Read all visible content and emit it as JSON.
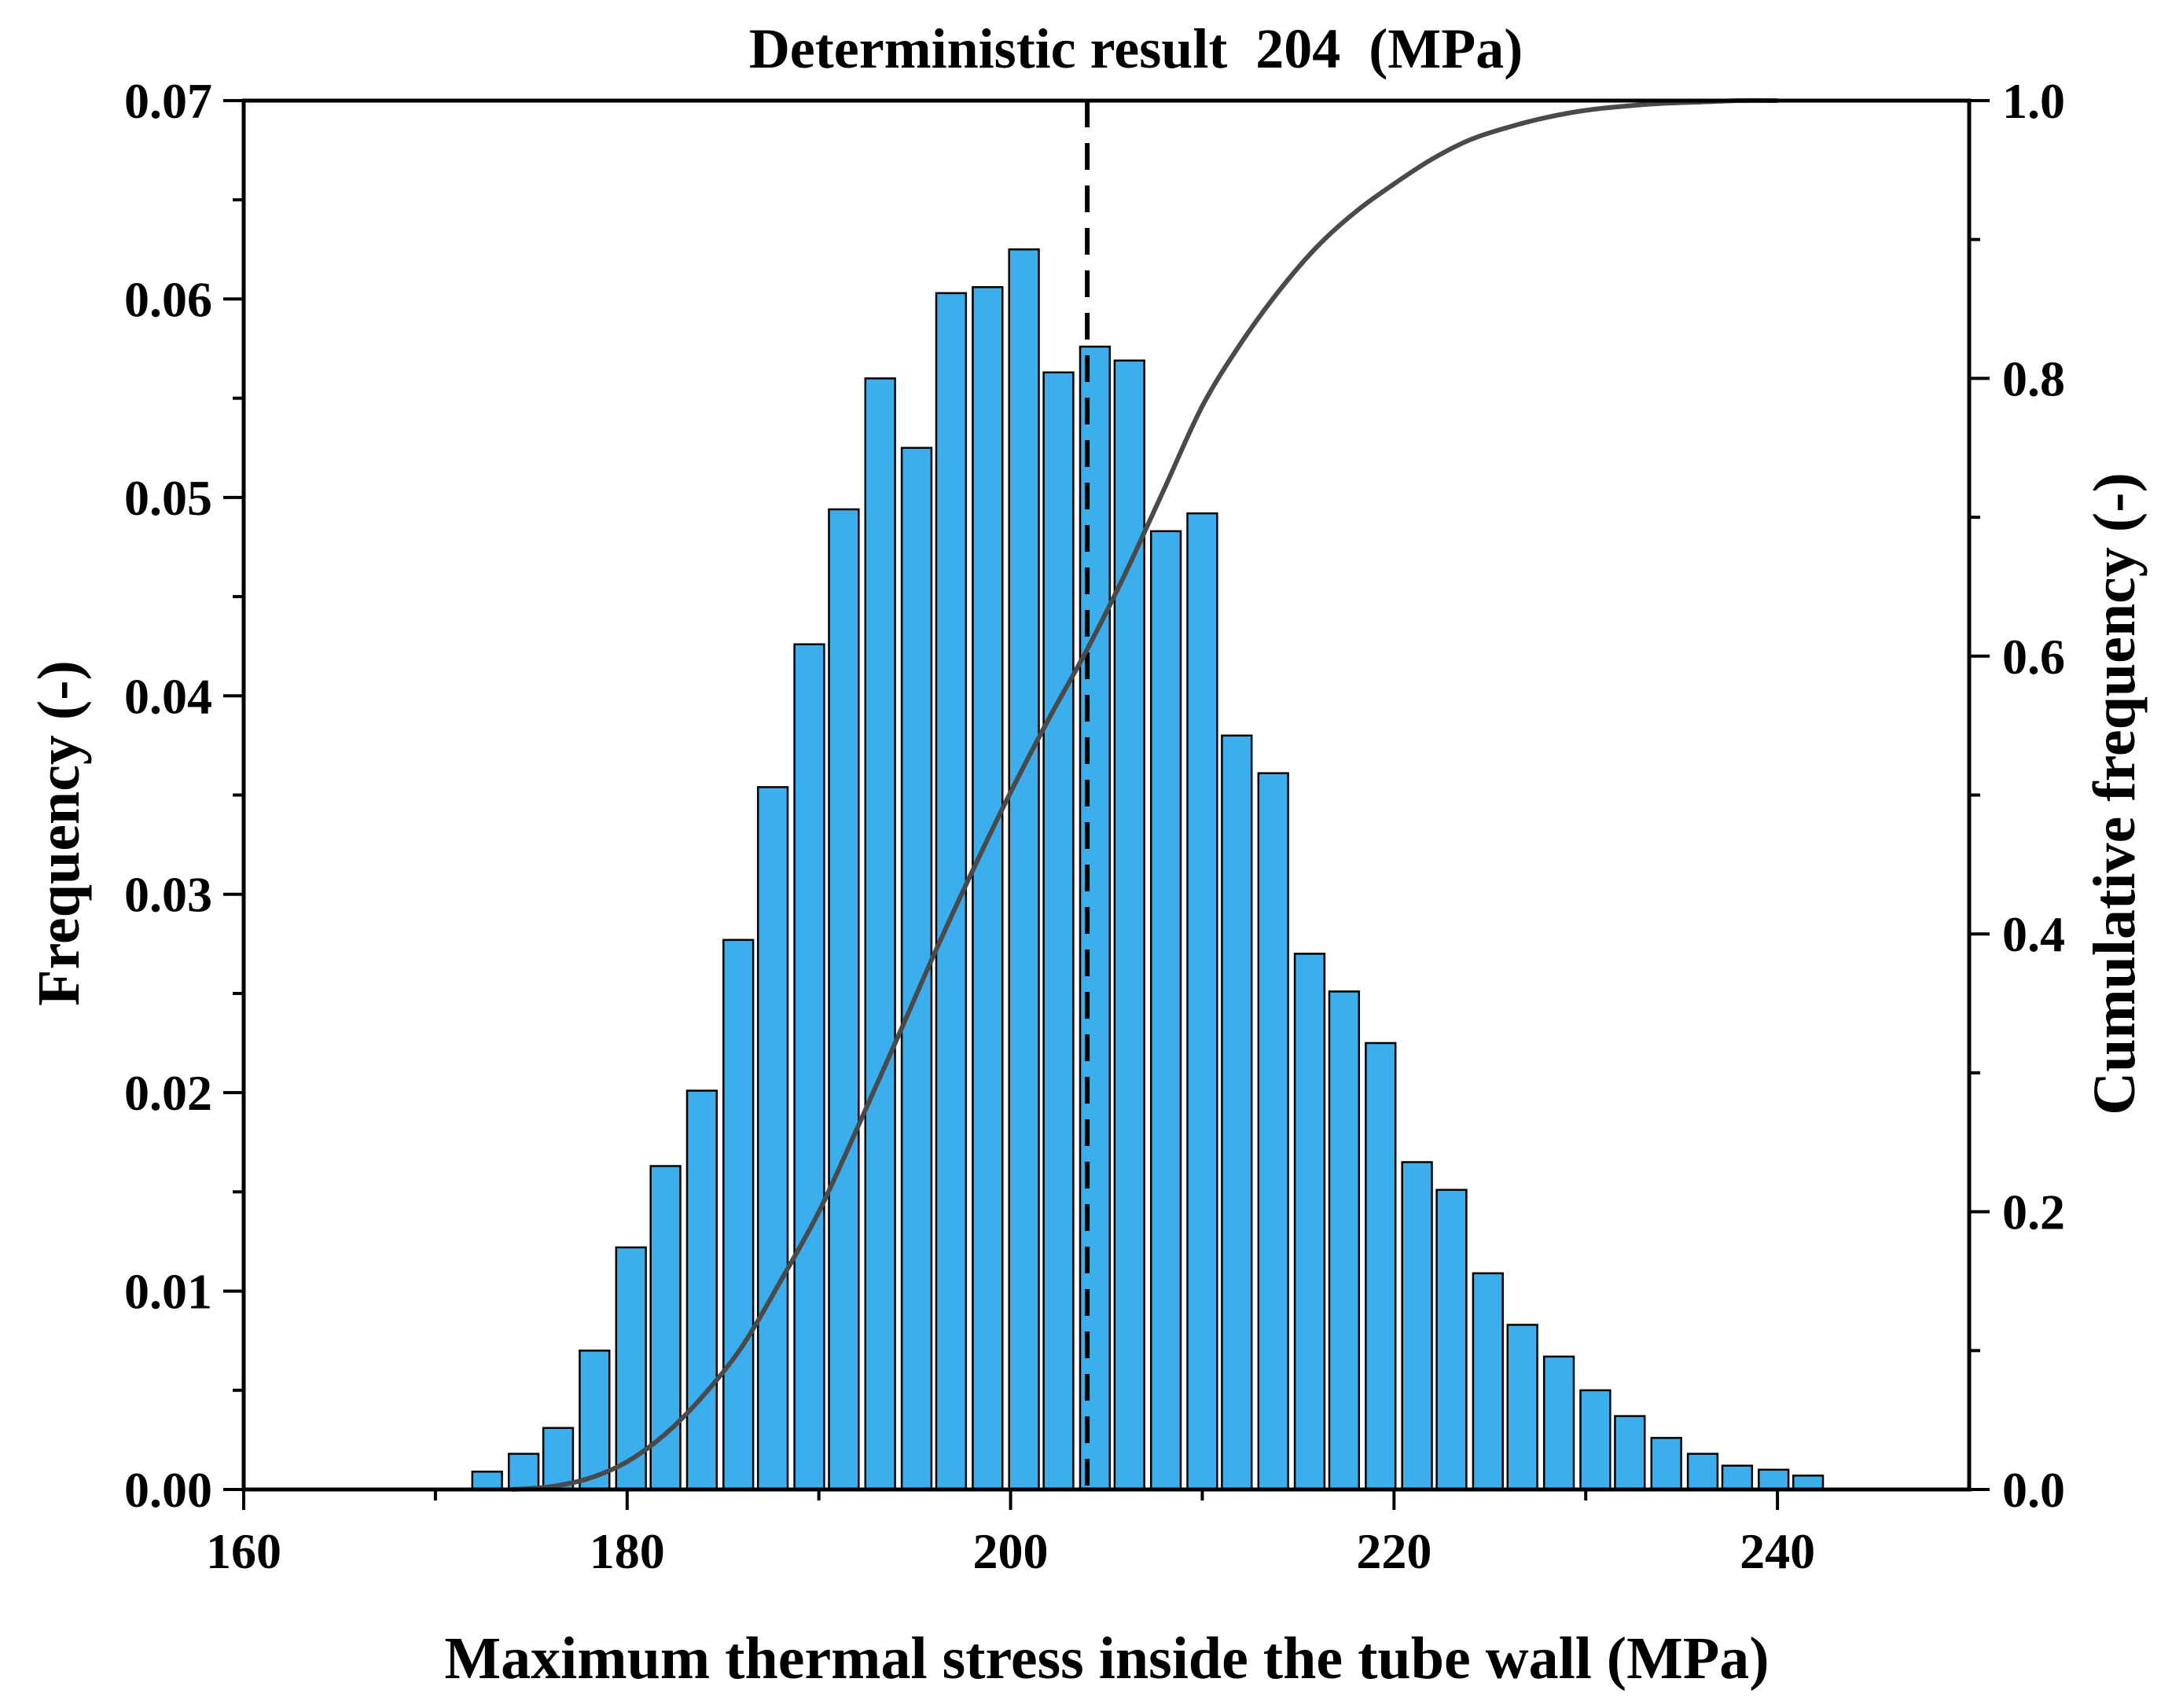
{
  "chart_data": {
    "type": "bar",
    "title": "Deterministic result  204  (MPa)",
    "xlabel": "Maximum thermal stress inside the tube wall (MPa)",
    "ylabel": "Frequency (-)",
    "ylabel_right": "Cumulative frequency (-)",
    "xlim": [
      160,
      250
    ],
    "ylim": [
      0,
      0.07
    ],
    "ylim_right": [
      0,
      1.0
    ],
    "x_ticks": [
      160,
      180,
      200,
      220,
      240
    ],
    "x_tick_labels": [
      "160",
      "180",
      "200",
      "220",
      "240"
    ],
    "y_ticks": [
      0,
      0.01,
      0.02,
      0.03,
      0.04,
      0.05,
      0.06,
      0.07
    ],
    "y_tick_labels": [
      "0.00",
      "0.01",
      "0.02",
      "0.03",
      "0.04",
      "0.05",
      "0.06",
      "0.07"
    ],
    "y_right_ticks": [
      0,
      0.2,
      0.4,
      0.6,
      0.8,
      1.0
    ],
    "y_right_tick_labels": [
      "0.0",
      "0.2",
      "0.4",
      "0.6",
      "0.8",
      "1.0"
    ],
    "deterministic_value": 204,
    "bar_width": 1.55,
    "series": [
      {
        "name": "Frequency",
        "type": "bar",
        "color": "#3daeed",
        "x": [
          172.7,
          174.6,
          176.4,
          178.3,
          180.2,
          182.0,
          183.9,
          185.8,
          187.6,
          189.5,
          191.3,
          193.2,
          195.1,
          196.9,
          198.8,
          200.7,
          202.5,
          204.4,
          206.2,
          208.1,
          210.0,
          211.8,
          213.7,
          215.6,
          217.4,
          219.3,
          221.2,
          223.0,
          224.9,
          226.7,
          228.6,
          230.5,
          232.3,
          234.2,
          236.1,
          237.9,
          239.8,
          241.6
        ],
        "values": [
          0.0009,
          0.0018,
          0.0031,
          0.007,
          0.0122,
          0.0163,
          0.0201,
          0.0277,
          0.0354,
          0.0426,
          0.0494,
          0.056,
          0.0525,
          0.0603,
          0.0606,
          0.0625,
          0.0563,
          0.0576,
          0.0569,
          0.0483,
          0.0492,
          0.038,
          0.0361,
          0.027,
          0.0251,
          0.0225,
          0.0165,
          0.0151,
          0.0109,
          0.0083,
          0.0067,
          0.005,
          0.0037,
          0.0026,
          0.0018,
          0.0012,
          0.001,
          0.0007
        ]
      },
      {
        "name": "Cumulative frequency",
        "type": "line",
        "axis": "right",
        "color": "#4a4a4a",
        "x": [
          174,
          176,
          178,
          180,
          182,
          184,
          186,
          188,
          190,
          192,
          194,
          196,
          198,
          200,
          202,
          204,
          206,
          208,
          210,
          212,
          214,
          216,
          218,
          220,
          222,
          224,
          226,
          228,
          230,
          232,
          234,
          236,
          238,
          240
        ],
        "values": [
          0.0,
          0.002,
          0.008,
          0.02,
          0.04,
          0.068,
          0.103,
          0.15,
          0.2,
          0.26,
          0.322,
          0.385,
          0.445,
          0.502,
          0.555,
          0.605,
          0.66,
          0.72,
          0.78,
          0.825,
          0.863,
          0.895,
          0.92,
          0.94,
          0.958,
          0.972,
          0.981,
          0.988,
          0.993,
          0.996,
          0.998,
          0.999,
          1.0,
          1.0
        ]
      }
    ]
  }
}
